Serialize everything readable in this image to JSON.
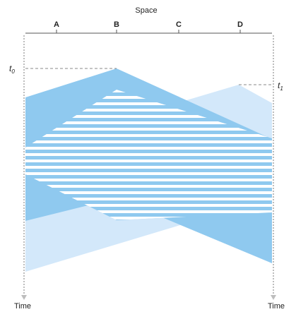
{
  "diagram": {
    "space_label": "Space",
    "time_label_left": "Time",
    "time_label_right": "Time",
    "stations": [
      "A",
      "B",
      "C",
      "D"
    ],
    "t0": {
      "letter": "t",
      "sub": "0"
    },
    "t1": {
      "letter": "t",
      "sub": "1"
    },
    "colors": {
      "signal_dark": "#8fc9ef",
      "signal_light": "#d3e8fa",
      "stripe": "#ffffff",
      "axis": "#555555",
      "dotted": "#bdbdbd",
      "dashed": "#888888",
      "text": "#222222"
    }
  }
}
